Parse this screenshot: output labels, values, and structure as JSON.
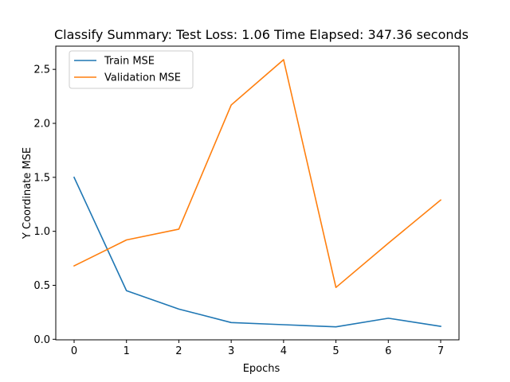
{
  "chart_data": {
    "type": "line",
    "title": "Classify Summary: Test Loss: 1.06 Time Elapsed: 347.36 seconds",
    "xlabel": "Epochs",
    "ylabel": "Y Coordinate MSE",
    "xlim": [
      -0.35,
      7.35
    ],
    "ylim": [
      -0.005,
      2.715
    ],
    "x_ticks": [
      0,
      1,
      2,
      3,
      4,
      5,
      6,
      7
    ],
    "y_ticks": [
      0.0,
      0.5,
      1.0,
      1.5,
      2.0,
      2.5
    ],
    "y_tick_labels": [
      "0.0",
      "0.5",
      "1.0",
      "1.5",
      "2.0",
      "2.5"
    ],
    "x": [
      0,
      1,
      2,
      3,
      4,
      5,
      6,
      7
    ],
    "series": [
      {
        "name": "Train MSE",
        "color": "#1f77b4",
        "values": [
          1.5,
          0.45,
          0.28,
          0.155,
          0.135,
          0.115,
          0.195,
          0.12
        ]
      },
      {
        "name": "Validation MSE",
        "color": "#ff7f0e",
        "values": [
          0.68,
          0.92,
          1.02,
          2.17,
          2.59,
          0.48,
          0.89,
          1.29
        ]
      }
    ],
    "grid": false,
    "legend_position": "top-left"
  }
}
